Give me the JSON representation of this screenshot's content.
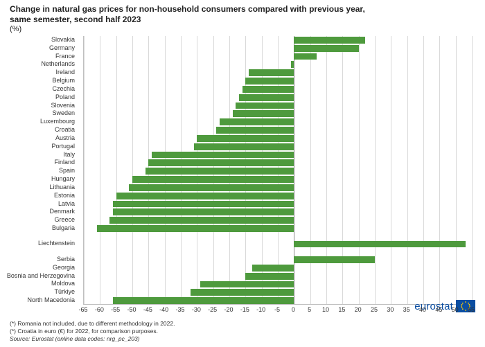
{
  "title_line1": "Change in natural gas prices for non-household consumers compared with previous year,",
  "title_line2": "same semester, second half 2023",
  "subtitle": "(%)",
  "logo_text": "eurostat",
  "footnotes": [
    "(*) Romania not included, due to different methodology in 2022.",
    "(*) Croatia in euro (€) for 2022, for comparison purposes.",
    "Source: Eurostat (online data codes: nrg_pc_203)"
  ],
  "chart": {
    "type": "bar-horizontal",
    "xlim": [
      -65,
      55
    ],
    "xtick_step": 5,
    "bar_color": "#4e9a3d",
    "background_color": "#ffffff",
    "grid_color": "#d9d9d9",
    "zero_color": "#8a8a8a",
    "label_fontsize": 9,
    "groups": [
      {
        "items": [
          {
            "label": "Slovakia",
            "value": 22
          },
          {
            "label": "Germany",
            "value": 20
          },
          {
            "label": "France",
            "value": 7
          },
          {
            "label": "Netherlands",
            "value": -1
          },
          {
            "label": "Ireland",
            "value": -14
          },
          {
            "label": "Belgium",
            "value": -15
          },
          {
            "label": "Czechia",
            "value": -16
          },
          {
            "label": "Poland",
            "value": -17
          },
          {
            "label": "Slovenia",
            "value": -18
          },
          {
            "label": "Sweden",
            "value": -19
          },
          {
            "label": "Luxembourg",
            "value": -23
          },
          {
            "label": "Croatia",
            "value": -24
          },
          {
            "label": "Austria",
            "value": -30
          },
          {
            "label": "Portugal",
            "value": -31
          },
          {
            "label": "Italy",
            "value": -44
          },
          {
            "label": "Finland",
            "value": -45
          },
          {
            "label": "Spain",
            "value": -46
          },
          {
            "label": "Hungary",
            "value": -50
          },
          {
            "label": "Lithuania",
            "value": -51
          },
          {
            "label": "Estonia",
            "value": -55
          },
          {
            "label": "Latvia",
            "value": -56
          },
          {
            "label": "Denmark",
            "value": -56
          },
          {
            "label": "Greece",
            "value": -57
          },
          {
            "label": "Bulgaria",
            "value": -61
          }
        ]
      },
      {
        "items": [
          {
            "label": "Liechtenstein",
            "value": 53
          }
        ]
      },
      {
        "items": [
          {
            "label": "Serbia",
            "value": 25
          },
          {
            "label": "Georgia",
            "value": -13
          },
          {
            "label": "Bosnia and Herzegovina",
            "value": -15
          },
          {
            "label": "Moldova",
            "value": -29
          },
          {
            "label": "Türkiye",
            "value": -32
          },
          {
            "label": "North Macedonia",
            "value": -56
          }
        ]
      }
    ]
  }
}
